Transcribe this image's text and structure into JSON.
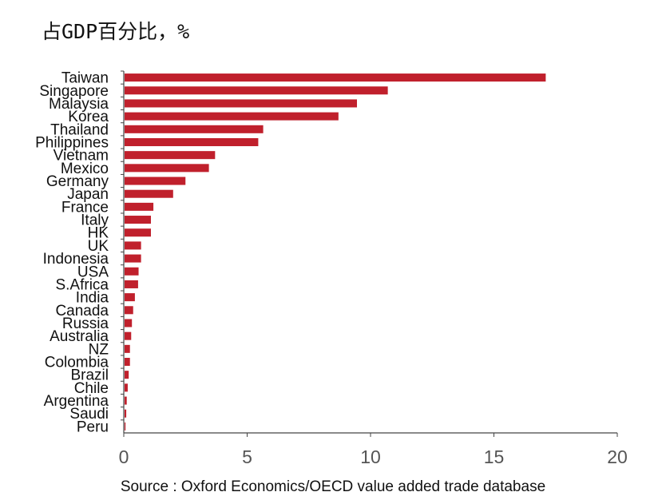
{
  "chart_data": {
    "type": "bar",
    "orientation": "horizontal",
    "title": "占GDP百分比，%",
    "categories": [
      "Taiwan",
      "Singapore",
      "Malaysia",
      "Korea",
      "Thailand",
      "Philippines",
      "Vietnam",
      "Mexico",
      "Germany",
      "Japan",
      "France",
      "Italy",
      "HK",
      "UK",
      "Indonesia",
      "USA",
      "S.Africa",
      "India",
      "Canada",
      "Russia",
      "Australia",
      "NZ",
      "Colombia",
      "Brazil",
      "Chile",
      "Argentina",
      "Saudi",
      "Peru"
    ],
    "values": [
      17.1,
      10.7,
      9.45,
      8.7,
      5.65,
      5.45,
      3.7,
      3.45,
      2.5,
      2.0,
      1.2,
      1.1,
      1.1,
      0.7,
      0.7,
      0.6,
      0.58,
      0.45,
      0.38,
      0.33,
      0.3,
      0.25,
      0.25,
      0.2,
      0.16,
      0.12,
      0.1,
      0.07
    ],
    "xlim": [
      0,
      20
    ],
    "xticks": [
      0,
      5,
      10,
      15,
      20
    ],
    "bar_color": "#c0202c",
    "grid": false,
    "source": "Source : Oxford Economics/OECD value added trade database"
  }
}
